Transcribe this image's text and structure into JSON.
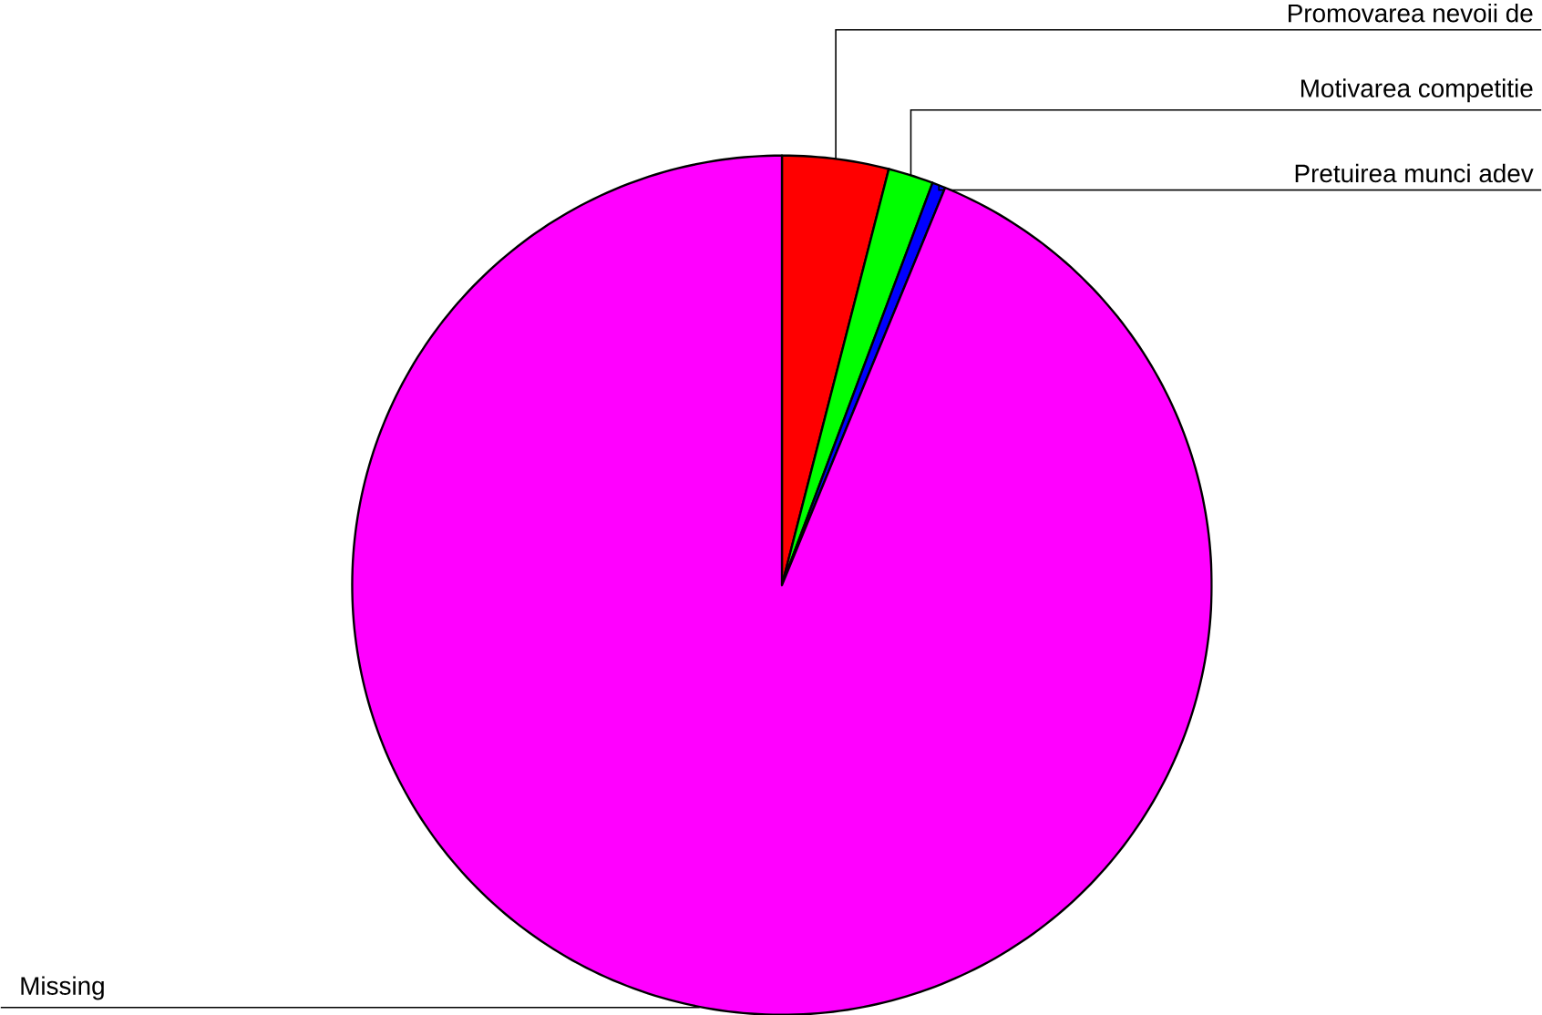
{
  "chart_data": {
    "type": "pie",
    "categories": [
      "Promovarea nevoii de",
      "Motivarea competitie",
      "Pretuirea munci adev",
      "Missing"
    ],
    "values": [
      4.0,
      1.7,
      0.5,
      93.8
    ],
    "colors": [
      "#ff0000",
      "#00ff00",
      "#0000ff",
      "#ff00ff"
    ]
  }
}
